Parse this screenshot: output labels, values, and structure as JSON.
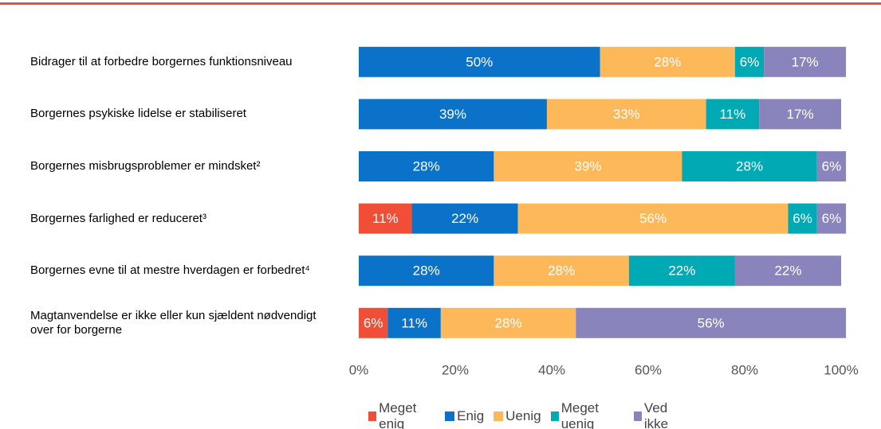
{
  "chart_data": {
    "type": "stacked_barh",
    "categories": [
      "Bidrager til at forbedre borgernes funktionsniveau",
      "Borgernes psykiske lidelse er stabiliseret",
      "Borgernes misbrugsproblemer er mindsket²",
      "Borgernes farlighed er reduceret³",
      "Borgernes evne til at mestre hverdagen er forbedret⁴",
      "Magtanvendelse er ikke eller kun sjældent nødvendigt over for borgerne"
    ],
    "series": [
      {
        "name": "Meget enig",
        "color": "#f04e37",
        "values": [
          0,
          0,
          0,
          11,
          0,
          6
        ],
        "value_labels": [
          null,
          null,
          null,
          "11%",
          null,
          "6%"
        ]
      },
      {
        "name": "Enig",
        "color": "#0a73c9",
        "values": [
          50,
          39,
          28,
          22,
          28,
          11
        ],
        "value_labels": [
          "50%",
          "39%",
          "28%",
          "22%",
          "28%",
          "11%"
        ]
      },
      {
        "name": "Uenig",
        "color": "#fdb85a",
        "values": [
          28,
          33,
          39,
          56,
          28,
          28
        ],
        "value_labels": [
          "28%",
          "33%",
          "39%",
          "56%",
          "28%",
          "28%"
        ]
      },
      {
        "name": "Meget uenig",
        "color": "#00aab4",
        "values": [
          6,
          11,
          28,
          6,
          22,
          0
        ],
        "value_labels": [
          "6%",
          "11%",
          "28%",
          "6%",
          "22%",
          null
        ]
      },
      {
        "name": "Ved ikke",
        "color": "#8a84bd",
        "values": [
          17,
          17,
          6,
          6,
          22,
          56
        ],
        "value_labels": [
          "17%",
          "17%",
          "6%",
          "6%",
          "22%",
          "56%"
        ]
      }
    ],
    "xlim": [
      0,
      100
    ],
    "xticks": [
      {
        "value": 0,
        "label": "0%"
      },
      {
        "value": 20,
        "label": "20%"
      },
      {
        "value": 40,
        "label": "40%"
      },
      {
        "value": 60,
        "label": "60%"
      },
      {
        "value": 80,
        "label": "80%"
      },
      {
        "value": 100,
        "label": "100%"
      }
    ],
    "grid": false,
    "legend": "bottom"
  }
}
